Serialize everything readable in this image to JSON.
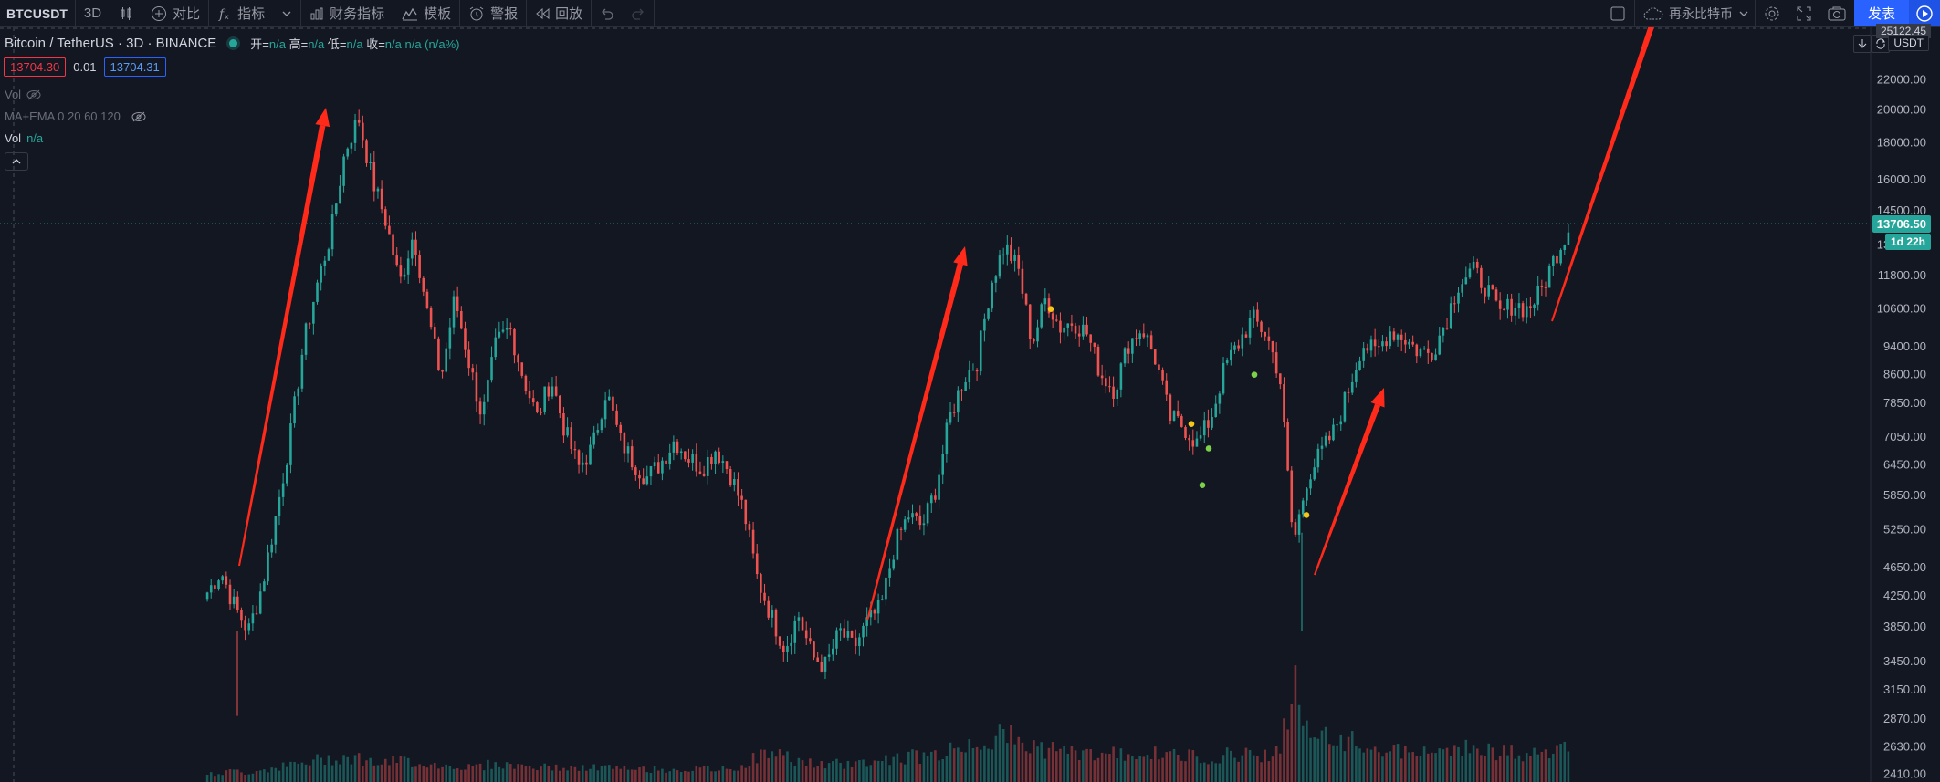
{
  "toolbar": {
    "symbol": "BTCUSDT",
    "interval": "3D",
    "compare_label": "对比",
    "indicators_label": "指标",
    "financials_label": "财务指标",
    "templates_label": "模板",
    "alert_label": "警报",
    "replay_label": "回放",
    "cloud_label": "再永比特币",
    "publish_label": "发表"
  },
  "legend": {
    "title": "Bitcoin / TetherUS · 3D · BINANCE",
    "open_label": "开=",
    "open_value": "n/a",
    "high_label": "高=",
    "high_value": "n/a",
    "low_label": "低=",
    "low_value": "n/a",
    "close_label": "收=",
    "close_value": "n/a",
    "change_value": "n/a (n/a%)",
    "sell_price": "13704.30",
    "spread": "0.01",
    "buy_price": "13704.31",
    "vol_hidden_label": "Vol",
    "ma_ema_label": "MA+EMA 0 20 60 120",
    "vol_label": "Vol",
    "vol_value": "n/a"
  },
  "price_axis": {
    "currency": "USDT",
    "top_value": "25122.45",
    "current_price": "13706.50",
    "countdown": "1d 22h",
    "labels": [
      "22000.00",
      "20000.00",
      "18000.00",
      "16000.00",
      "14500.00",
      "13000.00",
      "11800.00",
      "10600.00",
      "9400.00",
      "8600.00",
      "7850.00",
      "7050.00",
      "6450.00",
      "5850.00",
      "5250.00",
      "4650.00",
      "4250.00",
      "3850.00",
      "3450.00",
      "3150.00",
      "2870.00",
      "2630.00",
      "2410.00"
    ]
  },
  "chart_data": {
    "type": "candlestick",
    "symbol": "BTCUSDT",
    "interval": "3D",
    "y_scale": "log",
    "ylim": [
      2350,
      26000
    ],
    "colors": {
      "up": "#26a69a",
      "down": "#ef5350",
      "annotation": "#ff2a1a"
    },
    "close_path": [
      4300,
      4600,
      4100,
      3800,
      4400,
      5500,
      7000,
      9500,
      11500,
      13500,
      17500,
      19500,
      16000,
      14000,
      11500,
      13500,
      10500,
      8500,
      11000,
      9000,
      7500,
      9500,
      10000,
      8500,
      7500,
      8500,
      7200,
      6400,
      6800,
      8200,
      7000,
      6500,
      6200,
      6500,
      7000,
      6600,
      6400,
      6800,
      6300,
      5600,
      4500,
      4000,
      3600,
      4000,
      3500,
      3400,
      3800,
      3600,
      3900,
      4100,
      5000,
      5500,
      5300,
      6000,
      7500,
      8500,
      9000,
      11500,
      13000,
      12000,
      9500,
      11000,
      10000,
      10200,
      9800,
      8600,
      8200,
      9500,
      10000,
      9000,
      7500,
      7300,
      6900,
      7500,
      8800,
      9500,
      10300,
      9800,
      8600,
      5000,
      6200,
      6700,
      7200,
      8200,
      9500,
      9200,
      9900,
      9700,
      9300,
      9200,
      10100,
      11500,
      12000,
      11400,
      10400,
      10800,
      10600,
      11200,
      12500,
      13700
    ],
    "volume_path": [
      0.04,
      0.05,
      0.06,
      0.05,
      0.07,
      0.08,
      0.09,
      0.1,
      0.12,
      0.13,
      0.14,
      0.13,
      0.11,
      0.1,
      0.12,
      0.11,
      0.1,
      0.09,
      0.09,
      0.08,
      0.09,
      0.1,
      0.09,
      0.09,
      0.08,
      0.08,
      0.08,
      0.07,
      0.08,
      0.08,
      0.07,
      0.07,
      0.07,
      0.07,
      0.07,
      0.07,
      0.07,
      0.07,
      0.07,
      0.09,
      0.14,
      0.16,
      0.14,
      0.12,
      0.1,
      0.09,
      0.1,
      0.1,
      0.11,
      0.12,
      0.13,
      0.14,
      0.14,
      0.15,
      0.17,
      0.2,
      0.22,
      0.24,
      0.26,
      0.22,
      0.2,
      0.18,
      0.17,
      0.16,
      0.16,
      0.15,
      0.15,
      0.16,
      0.16,
      0.15,
      0.15,
      0.14,
      0.14,
      0.14,
      0.15,
      0.15,
      0.16,
      0.15,
      0.16,
      0.55,
      0.3,
      0.24,
      0.22,
      0.22,
      0.21,
      0.19,
      0.17,
      0.16,
      0.16,
      0.15,
      0.17,
      0.2,
      0.19,
      0.17,
      0.16,
      0.16,
      0.15,
      0.15,
      0.17,
      0.19
    ]
  }
}
